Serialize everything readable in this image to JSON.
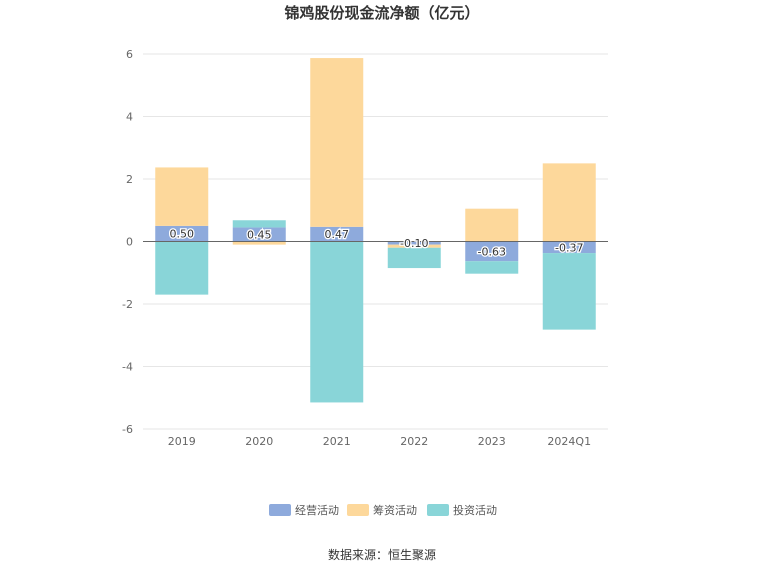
{
  "chart_data": {
    "type": "bar",
    "stacked": true,
    "title": "锦鸡股份现金流净额（亿元）",
    "categories": [
      "2019",
      "2020",
      "2021",
      "2022",
      "2023",
      "2024Q1"
    ],
    "ylim": [
      -6,
      6
    ],
    "yticks": [
      6,
      4,
      2,
      0,
      -2,
      -4,
      -6
    ],
    "grid": true,
    "legend_position": "bottom",
    "series": [
      {
        "name": "经营活动",
        "values": [
          0.5,
          0.45,
          0.47,
          -0.1,
          -0.63,
          -0.37
        ],
        "color": "#8eaadc",
        "show_labels": true
      },
      {
        "name": "筹资活动",
        "values": [
          1.87,
          -0.1,
          5.4,
          -0.1,
          1.05,
          2.5
        ],
        "color": "#fdd89b",
        "show_labels": false
      },
      {
        "name": "投资活动",
        "values": [
          -1.7,
          0.23,
          -5.15,
          -0.65,
          -0.4,
          -2.45
        ],
        "color": "#89d5d8",
        "show_labels": false
      }
    ],
    "source": "数据来源：恒生聚源"
  }
}
